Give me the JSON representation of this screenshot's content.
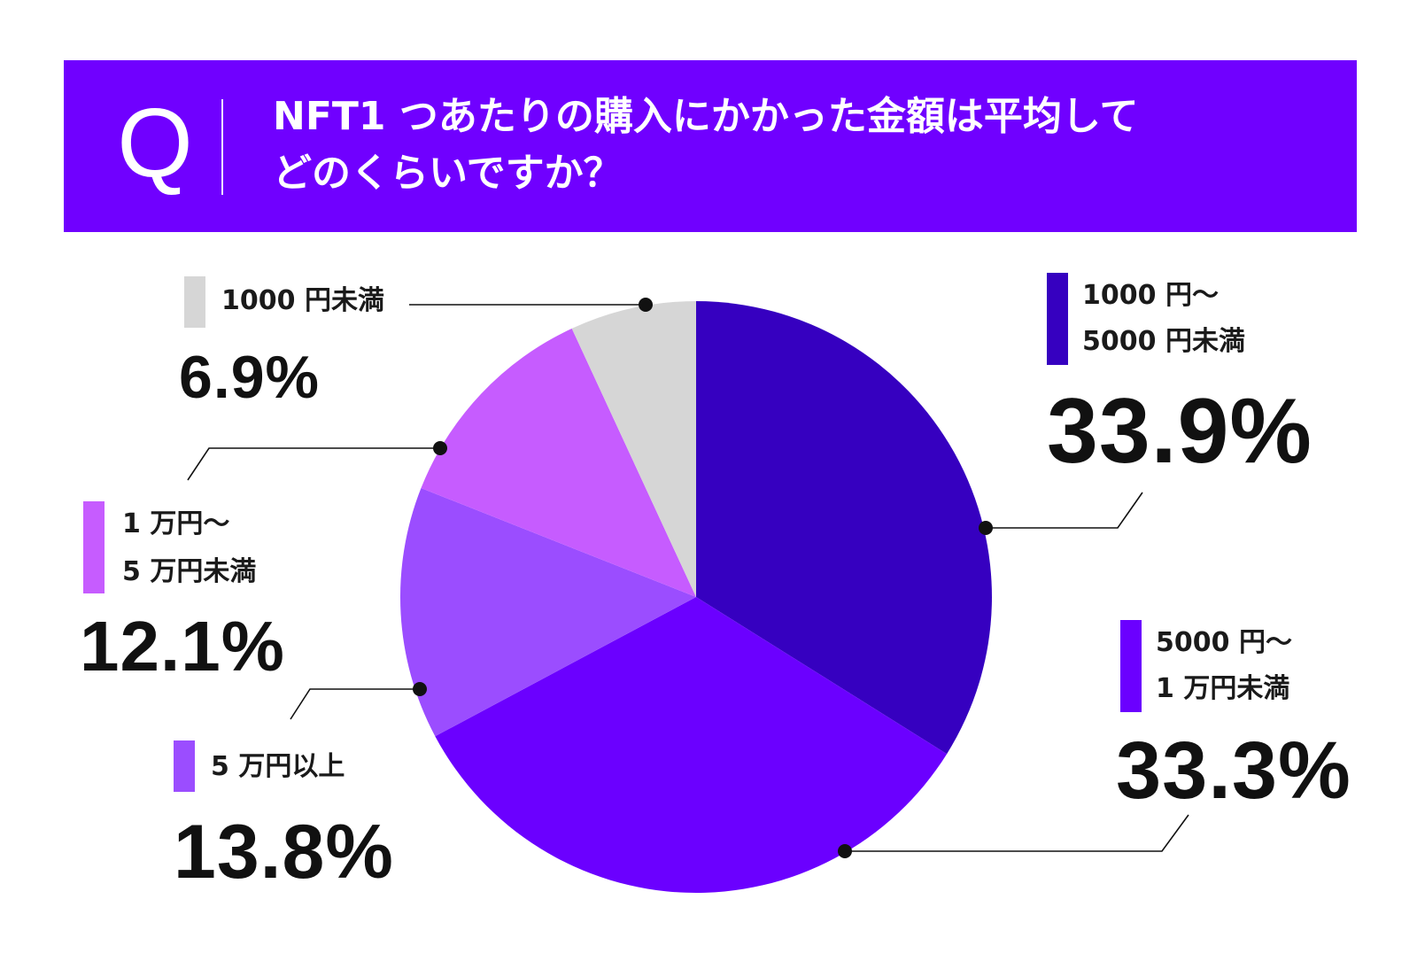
{
  "question": {
    "marker": "Q",
    "line1": "NFT1 つあたりの購入にかかった金額は平均して",
    "line2": "どのくらいですか？"
  },
  "colors": {
    "banner": "#7000ff",
    "slices": [
      "#3600c0",
      "#6b00ff",
      "#9b4dff",
      "#c65cff",
      "#d6d6d6"
    ]
  },
  "chart_data": {
    "type": "pie",
    "title": "NFT1 つあたりの購入にかかった金額は平均してどのくらいですか？",
    "start": "12 o'clock, clockwise",
    "slices": [
      {
        "label_line1": "1000 円～",
        "label_line2": "5000 円未満",
        "value": 33.9,
        "display": "33.9%"
      },
      {
        "label_line1": "5000 円～",
        "label_line2": "1 万円未満",
        "value": 33.3,
        "display": "33.3%"
      },
      {
        "label_line1": "5 万円以上",
        "label_line2": "",
        "value": 13.8,
        "display": "13.8%"
      },
      {
        "label_line1": "1 万円～",
        "label_line2": "5 万円未満",
        "value": 12.1,
        "display": "12.1%"
      },
      {
        "label_line1": "1000 円未満",
        "label_line2": "",
        "value": 6.9,
        "display": "6.9%"
      }
    ]
  }
}
